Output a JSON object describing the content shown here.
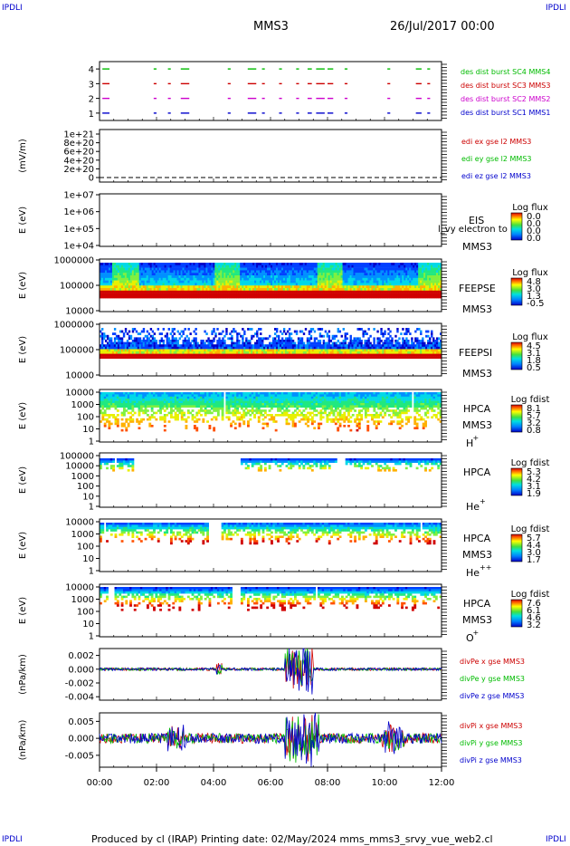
{
  "header": {
    "corner_label": "IPDLI",
    "spacecraft": "MMS3",
    "date": "26/Jul/2017 00:00"
  },
  "footer": {
    "text": "Produced by cl (IRAP)   Printing date: 02/May/2024   mms_mms3_srvy_vue_web2.cl"
  },
  "colors": {
    "mms1": "#0000cc",
    "mms2": "#cc00cc",
    "mms3": "#cc0000",
    "mms4": "#00bb00"
  },
  "time_axis": {
    "start": "00:00",
    "end": "12:00",
    "tick_labels": [
      "00:00",
      "02:00",
      "04:00",
      "06:00",
      "08:00",
      "10:00",
      "12:00"
    ]
  },
  "chart_data": [
    {
      "type": "scatter",
      "panel": "burst",
      "yticks": [
        "4",
        "3",
        "2",
        "1"
      ],
      "ylim": [
        0.5,
        4.5
      ],
      "series": [
        {
          "name": "des dist burst SC1 MMS1",
          "y": 1,
          "color": "#0000cc"
        },
        {
          "name": "des dist burst SC2 MMS2",
          "y": 2,
          "color": "#cc00cc"
        },
        {
          "name": "des dist burst SC3 MMS3",
          "y": 3,
          "color": "#cc0000"
        },
        {
          "name": "des dist burst SC4 MMS4",
          "y": 4,
          "color": "#00bb00"
        }
      ],
      "burst_intervals_hours": [
        [
          0.1,
          0.35
        ],
        [
          1.9,
          2.0
        ],
        [
          2.4,
          2.5
        ],
        [
          2.85,
          3.15
        ],
        [
          4.5,
          4.6
        ],
        [
          5.2,
          5.5
        ],
        [
          5.7,
          5.8
        ],
        [
          6.3,
          6.4
        ],
        [
          6.9,
          7.0
        ],
        [
          7.3,
          7.45
        ],
        [
          7.6,
          7.9
        ],
        [
          8.0,
          8.2
        ],
        [
          8.6,
          8.7
        ],
        [
          10.1,
          10.2
        ],
        [
          11.1,
          11.3
        ],
        [
          11.5,
          11.6
        ]
      ]
    },
    {
      "type": "line",
      "panel": "edi",
      "ylabel": "(mV/m)",
      "yticks": [
        "1e+21",
        "8e+20",
        "6e+20",
        "4e+20",
        "2e+20",
        "0"
      ],
      "ylim": [
        0,
        1e+21
      ],
      "series": [
        {
          "name": "edi ex gse l2 MMS3",
          "color": "#cc0000",
          "values": [
            0,
            0
          ]
        },
        {
          "name": "edi ey gse l2 MMS3",
          "color": "#00bb00",
          "values": [
            0,
            0
          ]
        },
        {
          "name": "edi ez gse l2 MMS3",
          "color": "#0000cc",
          "values": [
            0,
            0
          ]
        }
      ]
    },
    {
      "type": "heatmap",
      "panel": "eis",
      "ylabel": "E (eV)",
      "yticks": [
        "1e+07",
        "1e+06",
        "1e+05",
        "1e+04"
      ],
      "instrument": "EIS",
      "sub_label": "MMS3",
      "overlay_label": "l_vy electron to",
      "colorbar_title": "Log flux",
      "colorbar_ticks": [
        "0.0",
        "0.0",
        "0.0",
        "0.0"
      ]
    },
    {
      "type": "heatmap",
      "panel": "feepse",
      "ylabel": "E (eV)",
      "yticks": [
        "1000000",
        "100000",
        "10000"
      ],
      "instrument": "FEEPSE",
      "sub_label": "MMS3",
      "colorbar_title": "Log flux",
      "colorbar_ticks": [
        "4.8",
        "3.0",
        "1.3",
        "-0.5"
      ]
    },
    {
      "type": "heatmap",
      "panel": "feepsi",
      "ylabel": "E (eV)",
      "yticks": [
        "1000000",
        "100000",
        "10000"
      ],
      "instrument": "FEEPSI",
      "sub_label": "MMS3",
      "colorbar_title": "Log flux",
      "colorbar_ticks": [
        "4.5",
        "3.1",
        "1.8",
        "0.5"
      ]
    },
    {
      "type": "heatmap",
      "panel": "hpca-h",
      "ylabel": "E (eV)",
      "yticks": [
        "10000",
        "1000",
        "100",
        "10",
        "1"
      ],
      "instrument": "HPCA",
      "sub_label": "MMS3",
      "species": "H",
      "charge": "+",
      "colorbar_title": "Log fdist",
      "colorbar_ticks": [
        "8.1",
        "5.7",
        "3.2",
        "0.8"
      ]
    },
    {
      "type": "heatmap",
      "panel": "hpca-he",
      "ylabel": "E (eV)",
      "yticks": [
        "100000",
        "10000",
        "1000",
        "100",
        "10",
        "1"
      ],
      "instrument": "HPCA",
      "sub_label": "",
      "species": "He",
      "charge": "+",
      "colorbar_title": "Log fdist",
      "colorbar_ticks": [
        "5.3",
        "4.2",
        "3.1",
        "1.9"
      ]
    },
    {
      "type": "heatmap",
      "panel": "hpca-hepp",
      "ylabel": "E (eV)",
      "yticks": [
        "10000",
        "1000",
        "100",
        "10",
        "1"
      ],
      "instrument": "HPCA",
      "sub_label": "MMS3",
      "species": "He",
      "charge": "++",
      "colorbar_title": "Log fdist",
      "colorbar_ticks": [
        "5.7",
        "4.4",
        "3.0",
        "1.7"
      ]
    },
    {
      "type": "heatmap",
      "panel": "hpca-o",
      "ylabel": "E (eV)",
      "yticks": [
        "10000",
        "1000",
        "100",
        "10",
        "1"
      ],
      "instrument": "HPCA",
      "sub_label": "MMS3",
      "species": "O",
      "charge": "+",
      "colorbar_title": "Log fdist",
      "colorbar_ticks": [
        "7.6",
        "6.1",
        "4.6",
        "3.2"
      ]
    },
    {
      "type": "line",
      "panel": "divpe",
      "ylabel": "(nPa/km)",
      "yticks": [
        "0.002",
        "0.000",
        "-0.002",
        "-0.004"
      ],
      "ylim": [
        -0.0045,
        0.003
      ],
      "series": [
        {
          "name": "divPe x gse MMS3",
          "color": "#cc0000"
        },
        {
          "name": "divPe y gse MMS3",
          "color": "#00bb00"
        },
        {
          "name": "divPe z gse MMS3",
          "color": "#0000cc"
        }
      ]
    },
    {
      "type": "line",
      "panel": "divpi",
      "ylabel": "(nPa/km)",
      "yticks": [
        "0.005",
        "0.000",
        "-0.005"
      ],
      "ylim": [
        -0.0085,
        0.0075
      ],
      "series": [
        {
          "name": "divPi x gse MMS3",
          "color": "#cc0000"
        },
        {
          "name": "divPi y gse MMS3",
          "color": "#00bb00"
        },
        {
          "name": "divPi z gse MMS3",
          "color": "#0000cc"
        }
      ]
    }
  ]
}
